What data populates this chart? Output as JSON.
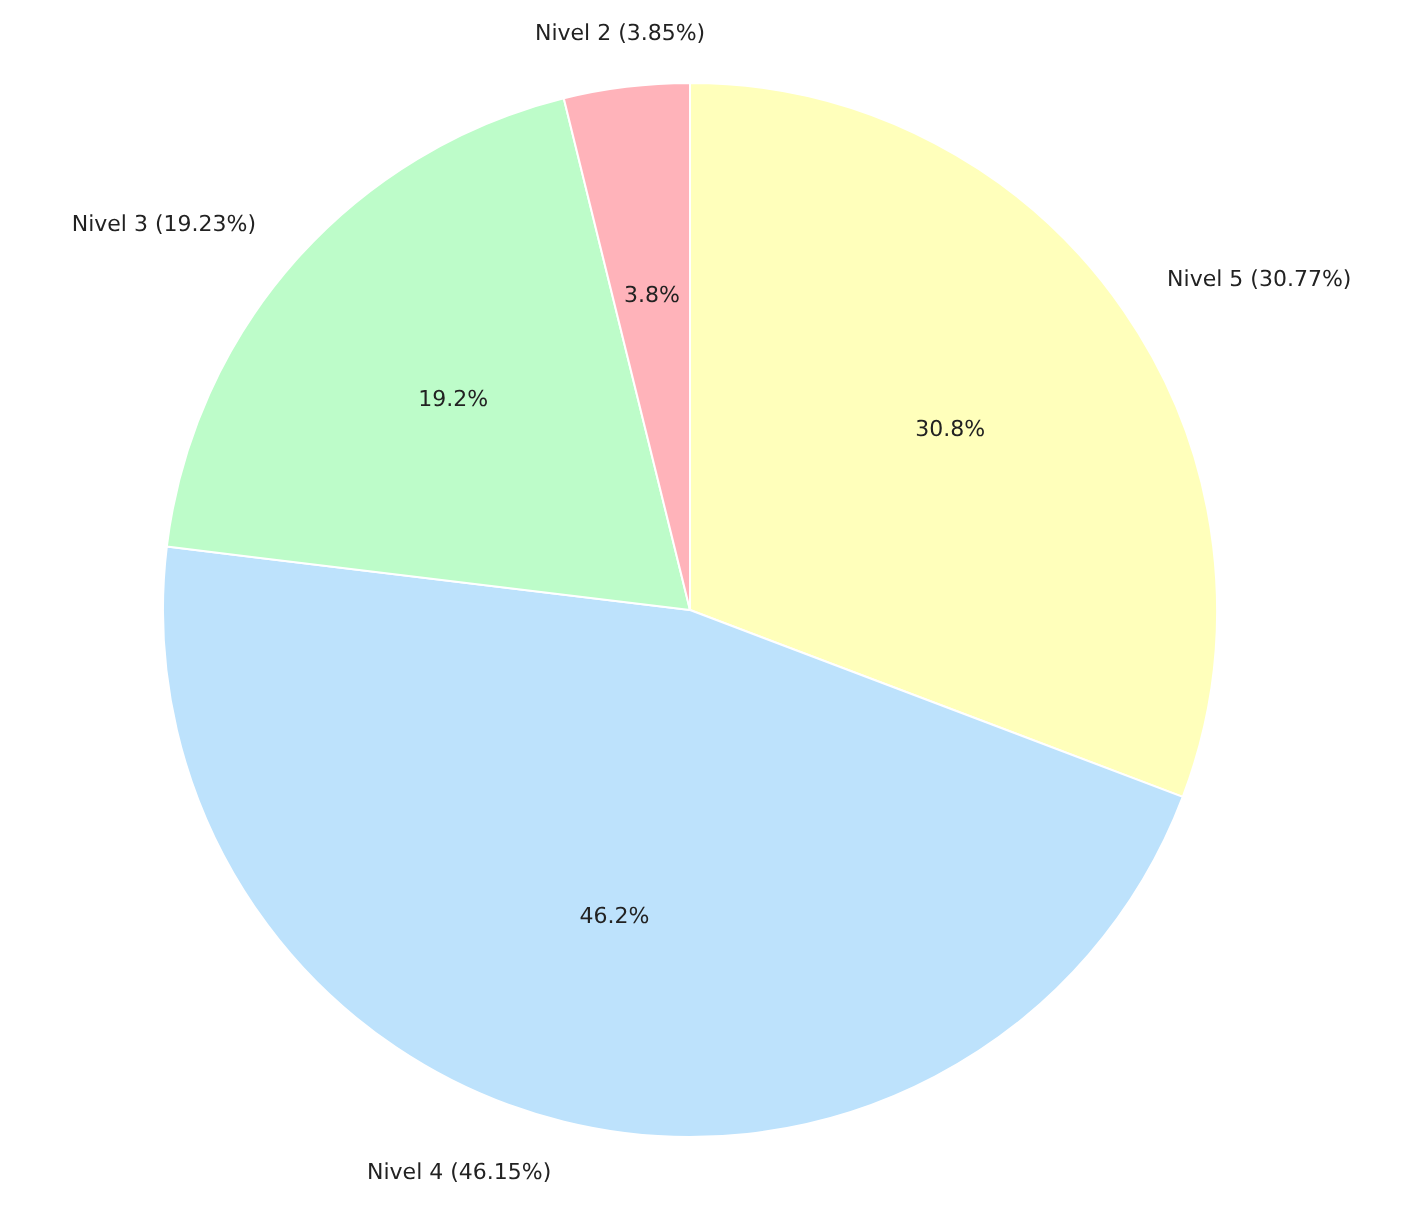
{
  "chart_data": {
    "type": "pie",
    "categories": [
      "Nivel 5 (30.77%)",
      "Nivel 4 (46.15%)",
      "Nivel 3 (19.23%)",
      "Nivel 2 (3.85%)"
    ],
    "values": [
      30.77,
      46.15,
      19.23,
      3.85
    ],
    "value_labels": [
      "30.8%",
      "46.2%",
      "19.2%",
      "3.8%"
    ],
    "colors": [
      "#ffffbb",
      "#bde2fc",
      "#bdfcc9",
      "#ffb3ba"
    ],
    "legend": false
  }
}
